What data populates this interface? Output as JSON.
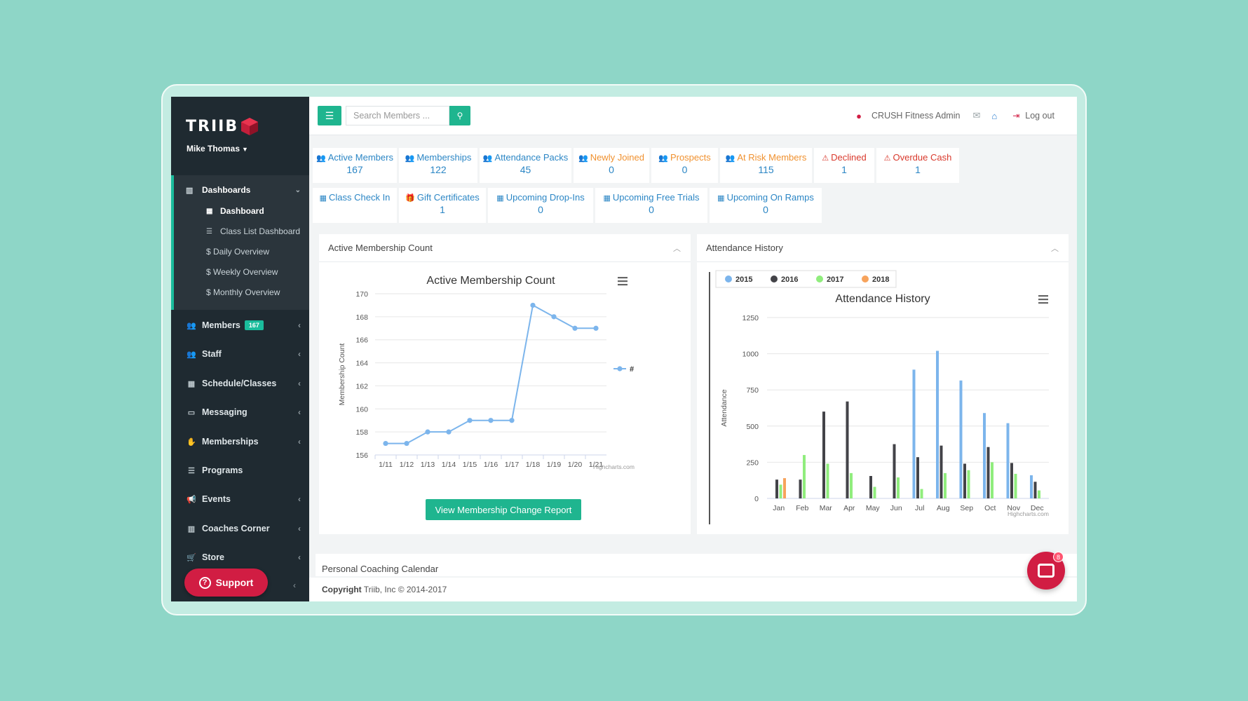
{
  "sidebar": {
    "logo_text": "TRIIB",
    "user_name": "Mike Thomas",
    "dashboards_label": "Dashboards",
    "dashboard_items": [
      {
        "label": "Dashboard",
        "icon": "grid-icon"
      },
      {
        "label": "Class List Dashboard",
        "icon": "list-icon"
      },
      {
        "label": "$ Daily Overview",
        "icon": ""
      },
      {
        "label": "$ Weekly Overview",
        "icon": ""
      },
      {
        "label": "$ Monthly Overview",
        "icon": ""
      }
    ],
    "nav_items": [
      {
        "label": "Members",
        "badge": "167",
        "icon": "users-icon"
      },
      {
        "label": "Staff",
        "icon": "users-icon"
      },
      {
        "label": "Schedule/Classes",
        "icon": "calendar-icon"
      },
      {
        "label": "Messaging",
        "icon": "inbox-icon"
      },
      {
        "label": "Memberships",
        "icon": "handshake-icon"
      },
      {
        "label": "Programs",
        "icon": "list-icon"
      },
      {
        "label": "Events",
        "icon": "bullhorn-icon"
      },
      {
        "label": "Coaches Corner",
        "icon": "chart-icon"
      },
      {
        "label": "Store",
        "icon": "cart-icon"
      }
    ],
    "support_label": "Support"
  },
  "topbar": {
    "search_placeholder": "Search Members ...",
    "admin_name": "CRUSH Fitness Admin",
    "logout_label": "Log out"
  },
  "stats_row1": [
    {
      "label": "Active Members",
      "value": "167",
      "color": "blue",
      "icon": "users-icon"
    },
    {
      "label": "Memberships",
      "value": "122",
      "color": "blue",
      "icon": "users-icon"
    },
    {
      "label": "Attendance Packs",
      "value": "45",
      "color": "blue",
      "icon": "users-icon"
    },
    {
      "label": "Newly Joined",
      "value": "0",
      "color": "orange",
      "icon": "users-icon"
    },
    {
      "label": "Prospects",
      "value": "0",
      "color": "orange",
      "icon": "users-icon"
    },
    {
      "label": "At Risk Members",
      "value": "115",
      "color": "orange",
      "icon": "users-icon"
    },
    {
      "label": "Declined",
      "value": "1",
      "color": "red",
      "icon": "warning-icon"
    },
    {
      "label": "Overdue Cash",
      "value": "1",
      "color": "red",
      "icon": "warning-icon"
    }
  ],
  "stats_row2": [
    {
      "label": "Class Check In",
      "value": "",
      "color": "blue",
      "icon": "calendar-icon"
    },
    {
      "label": "Gift Certificates",
      "value": "1",
      "color": "blue",
      "icon": "gift-icon"
    },
    {
      "label": "Upcoming Drop-Ins",
      "value": "0",
      "color": "blue",
      "icon": "calendar-icon"
    },
    {
      "label": "Upcoming Free Trials",
      "value": "0",
      "color": "blue",
      "icon": "calendar-icon"
    },
    {
      "label": "Upcoming On Ramps",
      "value": "0",
      "color": "blue",
      "icon": "calendar-icon"
    }
  ],
  "panels": {
    "membership_title": "Active Membership Count",
    "attendance_title": "Attendance History",
    "report_button": "View Membership Change Report",
    "coaching_title": "Personal Coaching Calendar"
  },
  "footer": {
    "copyright_label": "Copyright",
    "copyright_text": "Triib, Inc © 2014-2017"
  },
  "chat_badge": "8",
  "colors": {
    "accent": "#1fb58f",
    "sidebar_bg": "#1f2a31",
    "support_red": "#d11d43",
    "link_blue": "#2b86c5",
    "warn_orange": "#f0912f",
    "danger_red": "#d9392c"
  },
  "chart_data": [
    {
      "type": "line",
      "title": "Active Membership Count",
      "ylabel": "Membership Count",
      "credit": "Highcharts.com",
      "x": [
        "1/11",
        "1/12",
        "1/13",
        "1/14",
        "1/15",
        "1/16",
        "1/17",
        "1/18",
        "1/19",
        "1/20",
        "1/21"
      ],
      "series": [
        {
          "name": "#",
          "values": [
            157,
            157,
            158,
            158,
            159,
            159,
            159,
            169,
            168,
            167,
            167
          ]
        }
      ],
      "ylim": [
        156,
        170
      ],
      "yticks": [
        156,
        158,
        160,
        162,
        164,
        166,
        168,
        170
      ],
      "grid": true,
      "legend": "right"
    },
    {
      "type": "bar",
      "title": "Attendance History",
      "ylabel": "Attendance",
      "credit": "Highcharts.com",
      "categories": [
        "Jan",
        "Feb",
        "Mar",
        "Apr",
        "May",
        "Jun",
        "Jul",
        "Aug",
        "Sep",
        "Oct",
        "Nov",
        "Dec"
      ],
      "series": [
        {
          "name": "2015",
          "color": "#7cb5ec",
          "values": [
            0,
            0,
            0,
            0,
            0,
            0,
            890,
            1020,
            815,
            590,
            520,
            160
          ]
        },
        {
          "name": "2016",
          "color": "#434348",
          "values": [
            130,
            130,
            600,
            670,
            155,
            375,
            285,
            365,
            240,
            355,
            245,
            115
          ]
        },
        {
          "name": "2017",
          "color": "#90ed7d",
          "values": [
            95,
            300,
            240,
            175,
            80,
            145,
            65,
            175,
            195,
            250,
            170,
            55
          ]
        },
        {
          "name": "2018",
          "color": "#f7a35c",
          "values": [
            140,
            0,
            0,
            0,
            0,
            0,
            0,
            0,
            0,
            0,
            0,
            0
          ]
        }
      ],
      "ylim": [
        0,
        1250
      ],
      "yticks": [
        0,
        250,
        500,
        750,
        1000,
        1250
      ],
      "grid": true,
      "legend": "top-left"
    }
  ]
}
